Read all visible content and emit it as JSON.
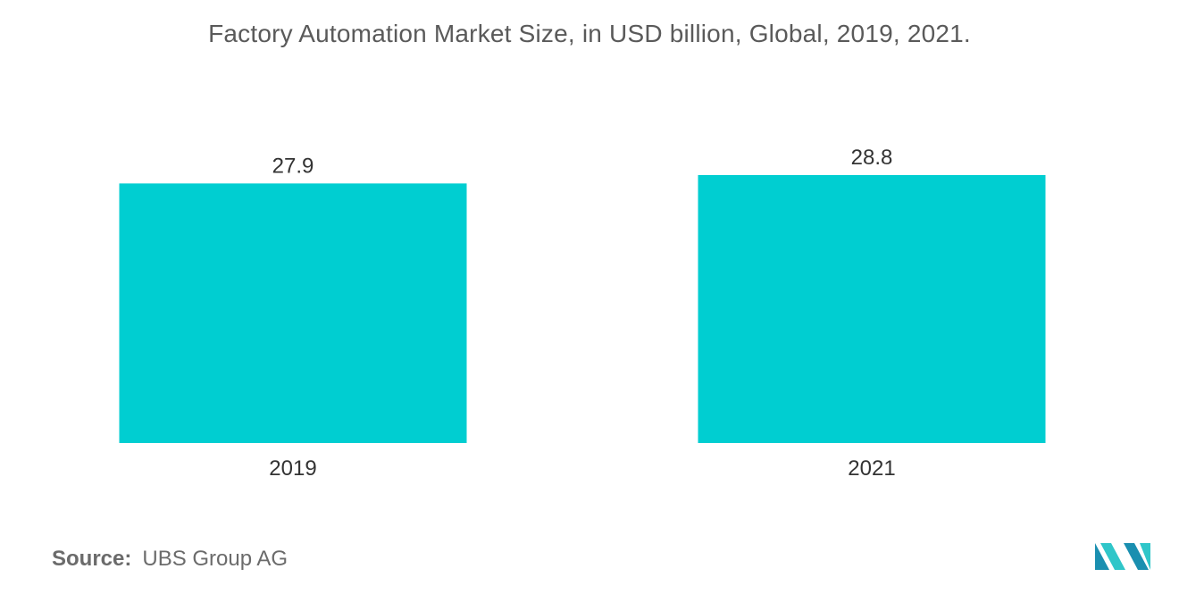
{
  "chart_data": {
    "type": "bar",
    "title": "Factory Automation Market Size, in USD billion, Global, 2019, 2021.",
    "categories": [
      "2019",
      "2021"
    ],
    "values": [
      27.9,
      28.8
    ],
    "value_labels": [
      "27.9",
      "28.8"
    ],
    "xlabel": "",
    "ylabel": "",
    "ylim": [
      0,
      28.8
    ],
    "grid": false,
    "bar_color": "#00CED1"
  },
  "source": {
    "label": "Source:",
    "text": "UBS Group AG"
  },
  "logo": {
    "icon": "mordor-intelligence-logo",
    "colors": [
      "#1a8fb0",
      "#2fc6c9"
    ]
  }
}
